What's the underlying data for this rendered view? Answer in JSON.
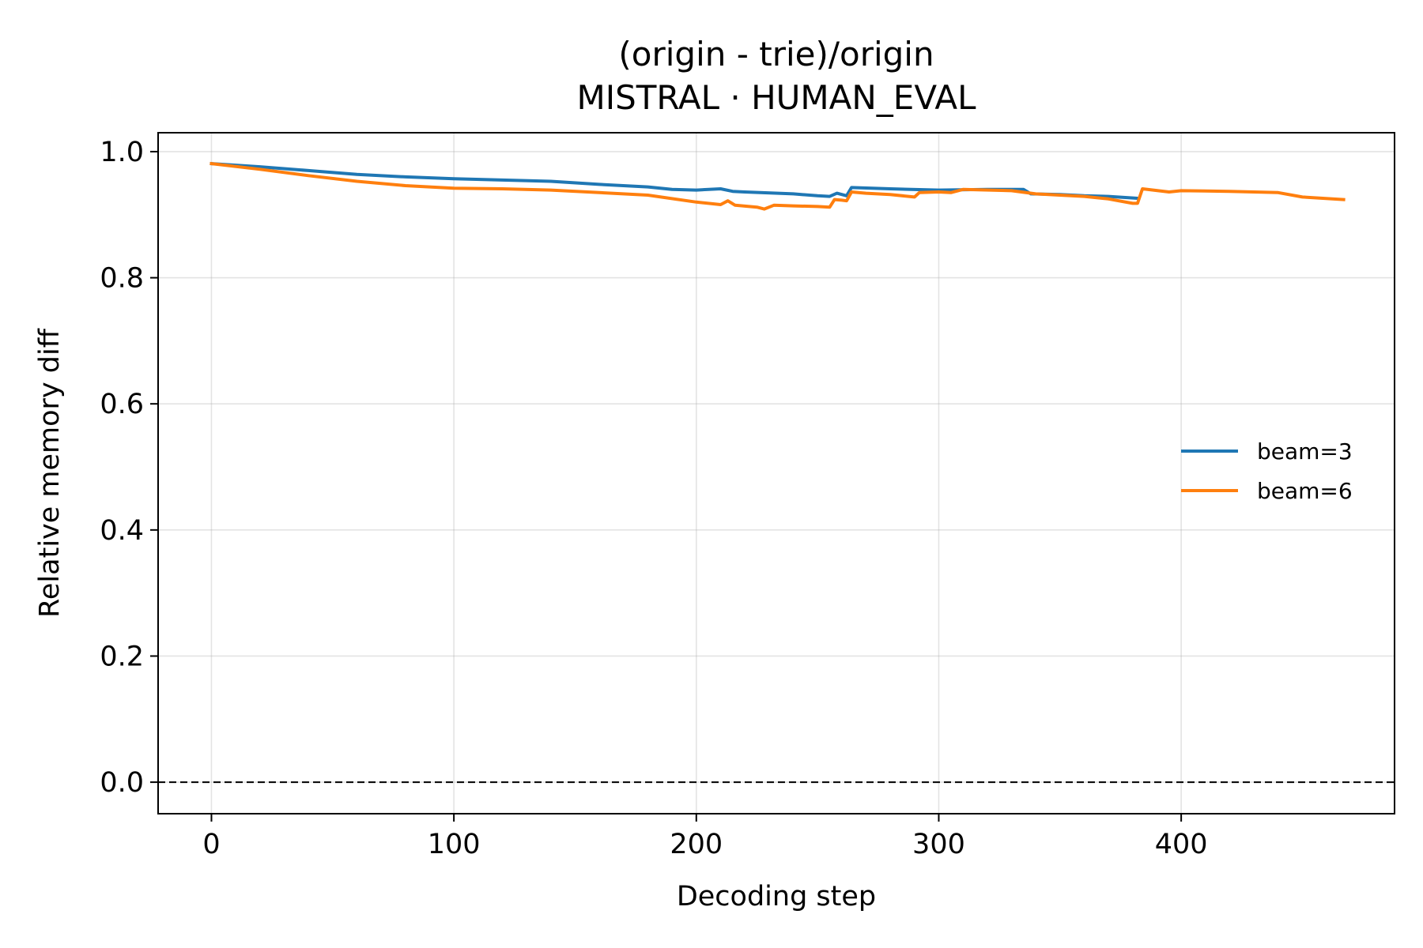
{
  "chart_data": {
    "type": "line",
    "title": "(origin - trie)/origin",
    "subtitle": "MISTRAL · HUMAN_EVAL",
    "xlabel": "Decoding step",
    "ylabel": "Relative memory diff",
    "xlim": [
      -22,
      488
    ],
    "ylim": [
      -0.05,
      1.03
    ],
    "xticks": [
      0,
      100,
      200,
      300,
      400
    ],
    "xtick_labels": [
      "0",
      "100",
      "200",
      "300",
      "400"
    ],
    "yticks": [
      0.0,
      0.2,
      0.4,
      0.6,
      0.8,
      1.0
    ],
    "ytick_labels": [
      "0.0",
      "0.2",
      "0.4",
      "0.6",
      "0.8",
      "1.0"
    ],
    "grid": true,
    "legend_position": "center-right",
    "reference_line": {
      "y": 0.0,
      "style": "dashed",
      "color": "#000000"
    },
    "series": [
      {
        "name": "beam=3",
        "color": "#1f77b4",
        "x": [
          0,
          20,
          40,
          60,
          80,
          100,
          120,
          140,
          160,
          180,
          190,
          200,
          210,
          215,
          220,
          240,
          250,
          255,
          258,
          262,
          264,
          280,
          300,
          320,
          335,
          338,
          350,
          360,
          370,
          382
        ],
        "y": [
          0.981,
          0.976,
          0.97,
          0.964,
          0.96,
          0.957,
          0.955,
          0.953,
          0.948,
          0.944,
          0.94,
          0.939,
          0.941,
          0.937,
          0.936,
          0.933,
          0.93,
          0.929,
          0.934,
          0.93,
          0.943,
          0.941,
          0.939,
          0.94,
          0.94,
          0.933,
          0.932,
          0.93,
          0.929,
          0.926
        ]
      },
      {
        "name": "beam=6",
        "color": "#ff7f0e",
        "x": [
          0,
          20,
          40,
          60,
          80,
          100,
          120,
          140,
          160,
          180,
          200,
          210,
          213,
          216,
          225,
          228,
          232,
          240,
          250,
          255,
          257,
          260,
          262,
          264,
          270,
          280,
          290,
          292,
          300,
          305,
          310,
          330,
          340,
          360,
          370,
          380,
          382,
          384,
          395,
          400,
          420,
          440,
          450,
          467
        ],
        "y": [
          0.981,
          0.972,
          0.962,
          0.953,
          0.946,
          0.942,
          0.941,
          0.939,
          0.935,
          0.931,
          0.92,
          0.916,
          0.922,
          0.915,
          0.912,
          0.909,
          0.915,
          0.914,
          0.913,
          0.912,
          0.924,
          0.923,
          0.922,
          0.936,
          0.934,
          0.932,
          0.928,
          0.935,
          0.936,
          0.935,
          0.94,
          0.938,
          0.933,
          0.929,
          0.925,
          0.918,
          0.918,
          0.941,
          0.936,
          0.938,
          0.937,
          0.935,
          0.928,
          0.924
        ]
      }
    ]
  }
}
